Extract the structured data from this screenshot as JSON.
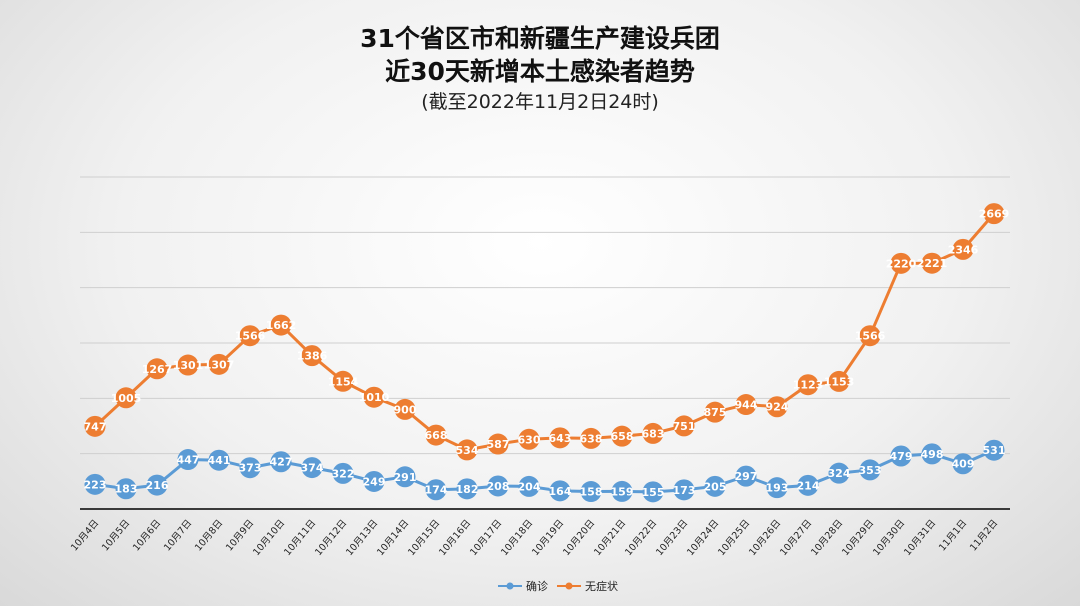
{
  "chart_data": {
    "type": "line",
    "title_line1": "31个省区市和新疆生产建设兵团",
    "title_line2": "近30天新增本土感染者趋势",
    "subtitle": "(截至2022年11月2日24时)",
    "categories": [
      "10月4日",
      "10月5日",
      "10月6日",
      "10月7日",
      "10月8日",
      "10月9日",
      "10月10日",
      "10月11日",
      "10月12日",
      "10月13日",
      "10月14日",
      "10月15日",
      "10月16日",
      "10月17日",
      "10月18日",
      "10月19日",
      "10月20日",
      "10月21日",
      "10月22日",
      "10月23日",
      "10月24日",
      "10月25日",
      "10月26日",
      "10月27日",
      "10月28日",
      "10月29日",
      "10月30日",
      "10月31日",
      "11月1日",
      "11月2日"
    ],
    "series": [
      {
        "name": "确诊",
        "color": "#5b9bd5",
        "values": [
          223,
          183,
          216,
          447,
          441,
          373,
          427,
          374,
          322,
          249,
          291,
          174,
          182,
          208,
          204,
          164,
          158,
          159,
          155,
          173,
          205,
          297,
          193,
          214,
          324,
          353,
          479,
          498,
          409,
          531
        ]
      },
      {
        "name": "无症状",
        "color": "#ed7d31",
        "values": [
          747,
          1005,
          1267,
          1301,
          1307,
          1566,
          1662,
          1386,
          1154,
          1010,
          900,
          668,
          534,
          587,
          630,
          643,
          638,
          658,
          683,
          751,
          875,
          944,
          924,
          1123,
          1153,
          1566,
          2220,
          2221,
          2346,
          2669
        ]
      }
    ],
    "ylim": [
      0,
      3000
    ],
    "grid": true,
    "legend": "bottom"
  }
}
